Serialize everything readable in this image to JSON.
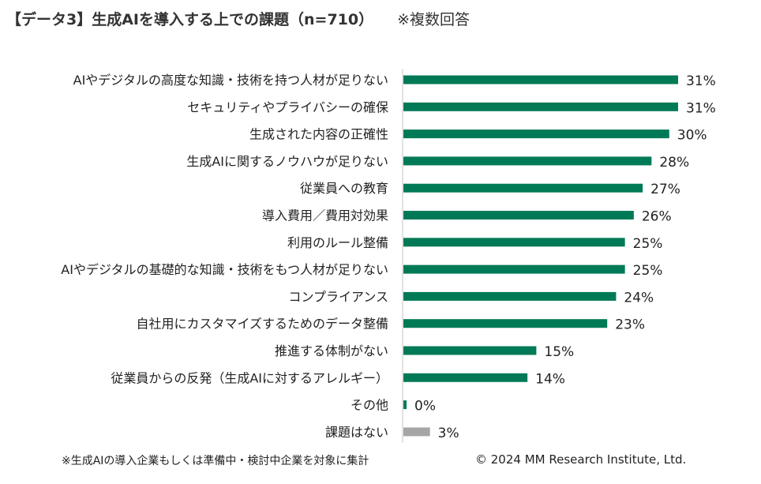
{
  "header": {
    "title": "【データ3】生成AIを導入する上での課題（n=710）",
    "note": "※複数回答"
  },
  "footer": {
    "footnote": "※生成AIの導入企業もしくは準備中・検討中企業を対象に集計",
    "copyright": "© 2024 MM Research Institute, Ltd."
  },
  "chart_data": {
    "type": "bar",
    "orientation": "horizontal",
    "categories": [
      "AIやデジタルの高度な知識・技術を持つ人材が足りない",
      "セキュリティやプライバシーの確保",
      "生成された内容の正確性",
      "生成AIに関するノウハウが足りない",
      "従業員への教育",
      "導入費用／費用対効果",
      "利用のルール整備",
      "AIやデジタルの基礎的な知識・技術をもつ人材が足りない",
      "コンプライアンス",
      "自社用にカスタマイズするためのデータ整備",
      "推進する体制がない",
      "従業員からの反発（生成AIに対するアレルギー）",
      "その他",
      "課題はない"
    ],
    "values": [
      31,
      31,
      30,
      28,
      27,
      26,
      25,
      25,
      24,
      23,
      15,
      14,
      0,
      3
    ],
    "value_labels": [
      "31%",
      "31%",
      "30%",
      "28%",
      "27%",
      "26%",
      "25%",
      "25%",
      "24%",
      "23%",
      "15%",
      "14%",
      "0%",
      "3%"
    ],
    "bar_colors": [
      "#007a56",
      "#007a56",
      "#007a56",
      "#007a56",
      "#007a56",
      "#007a56",
      "#007a56",
      "#007a56",
      "#007a56",
      "#007a56",
      "#007a56",
      "#007a56",
      "#007a56",
      "#a6a6a6"
    ],
    "xlim": [
      0,
      35
    ],
    "axis_color": "#d9d9d9",
    "grid": false,
    "legend": "none"
  }
}
